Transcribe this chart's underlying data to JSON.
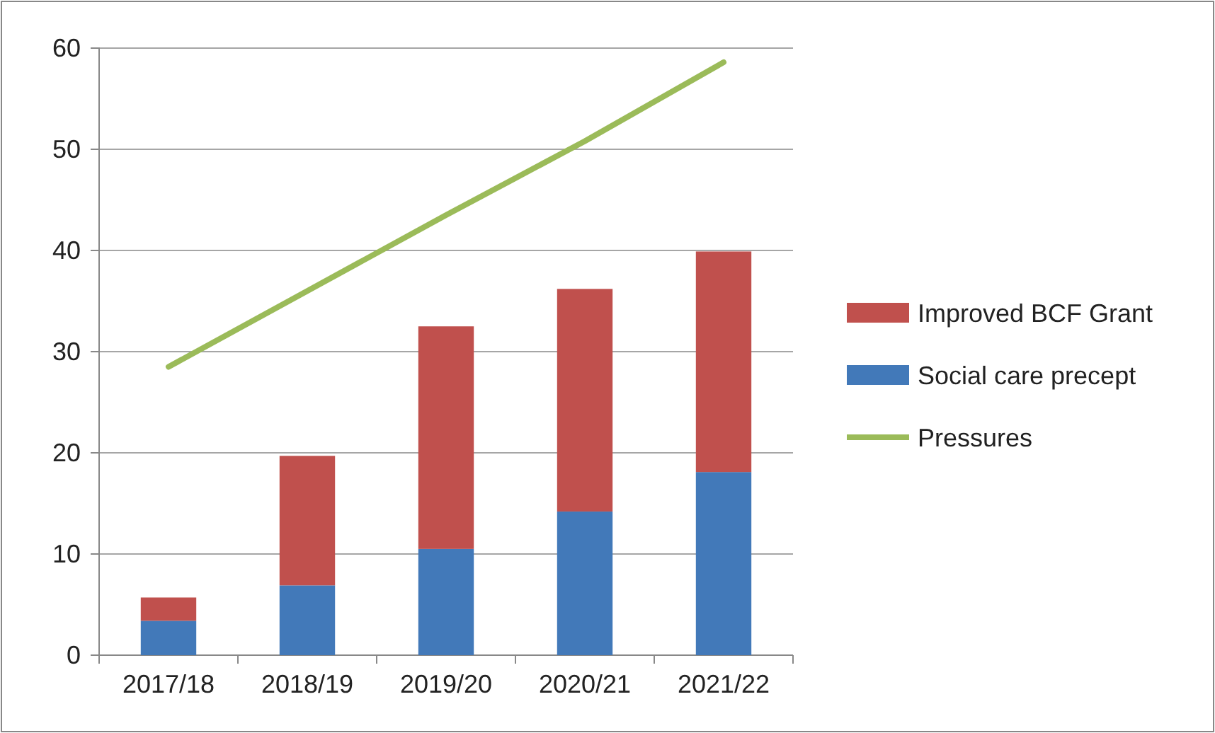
{
  "chart_data": {
    "type": "bar",
    "stacked": true,
    "categories": [
      "2017/18",
      "2018/19",
      "2019/20",
      "2020/21",
      "2021/22"
    ],
    "series": [
      {
        "name": "Social care precept",
        "color": "#4279b9",
        "values": [
          3.4,
          6.9,
          10.5,
          14.2,
          18.1
        ]
      },
      {
        "name": "Improved BCF Grant",
        "color": "#c0504d",
        "values": [
          2.3,
          12.8,
          22.0,
          22.0,
          21.8
        ]
      },
      {
        "name": "Pressures",
        "type": "line",
        "color": "#9bbb59",
        "values": [
          28.5,
          36.0,
          43.5,
          50.8,
          58.6
        ]
      }
    ],
    "ylim": [
      0,
      60
    ],
    "yticks": [
      0,
      10,
      20,
      30,
      40,
      50,
      60
    ],
    "grid": "y",
    "legend": "right"
  }
}
